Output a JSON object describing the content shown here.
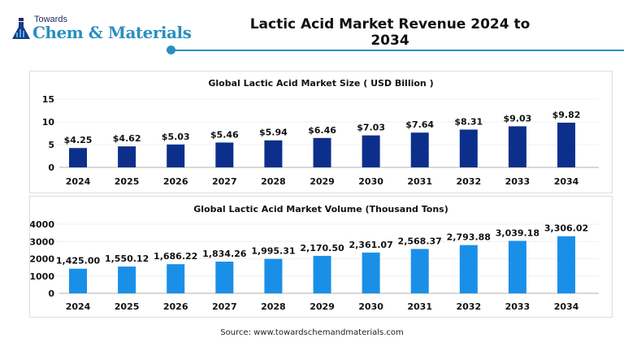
{
  "header": {
    "logo_line1": "Towards",
    "logo_line2": "Chem & Materials",
    "title": "Lactic Acid Market Revenue 2024 to 2034"
  },
  "chart_data": [
    {
      "type": "bar",
      "title": "Global Lactic Acid Market Size ( USD Billion )",
      "categories": [
        "2024",
        "2025",
        "2026",
        "2027",
        "2028",
        "2029",
        "2030",
        "2031",
        "2032",
        "2033",
        "2034"
      ],
      "values": [
        4.25,
        4.62,
        5.03,
        5.46,
        5.94,
        6.46,
        7.03,
        7.64,
        8.31,
        9.03,
        9.82
      ],
      "labels": [
        "$4.25",
        "$4.62",
        "$5.03",
        "$5.46",
        "$5.94",
        "$6.46",
        "$7.03",
        "$7.64",
        "$8.31",
        "$9.03",
        "$9.82"
      ],
      "yticks": [
        "0",
        "5",
        "10",
        "15"
      ],
      "ylim": [
        0,
        15
      ],
      "color": "#0d2f8c",
      "xlabel": "",
      "ylabel": ""
    },
    {
      "type": "bar",
      "title": "Global Lactic Acid Market Volume (Thousand Tons)",
      "categories": [
        "2024",
        "2025",
        "2026",
        "2027",
        "2028",
        "2029",
        "2030",
        "2031",
        "2032",
        "2033",
        "2034"
      ],
      "values": [
        1425.0,
        1550.12,
        1686.22,
        1834.26,
        1995.31,
        2170.5,
        2361.07,
        2568.37,
        2793.88,
        3039.18,
        3306.02
      ],
      "labels": [
        "1,425.00",
        "1,550.12",
        "1,686.22",
        "1,834.26",
        "1,995.31",
        "2,170.50",
        "2,361.07",
        "2,568.37",
        "2,793.88",
        "3,039.18",
        "3,306.02"
      ],
      "yticks": [
        "0",
        "1000",
        "2000",
        "3000",
        "4000"
      ],
      "ylim": [
        0,
        4000
      ],
      "color": "#1a8fe8",
      "xlabel": "",
      "ylabel": ""
    }
  ],
  "footer": {
    "source": "Source: www.towardschemandmaterials.com"
  }
}
